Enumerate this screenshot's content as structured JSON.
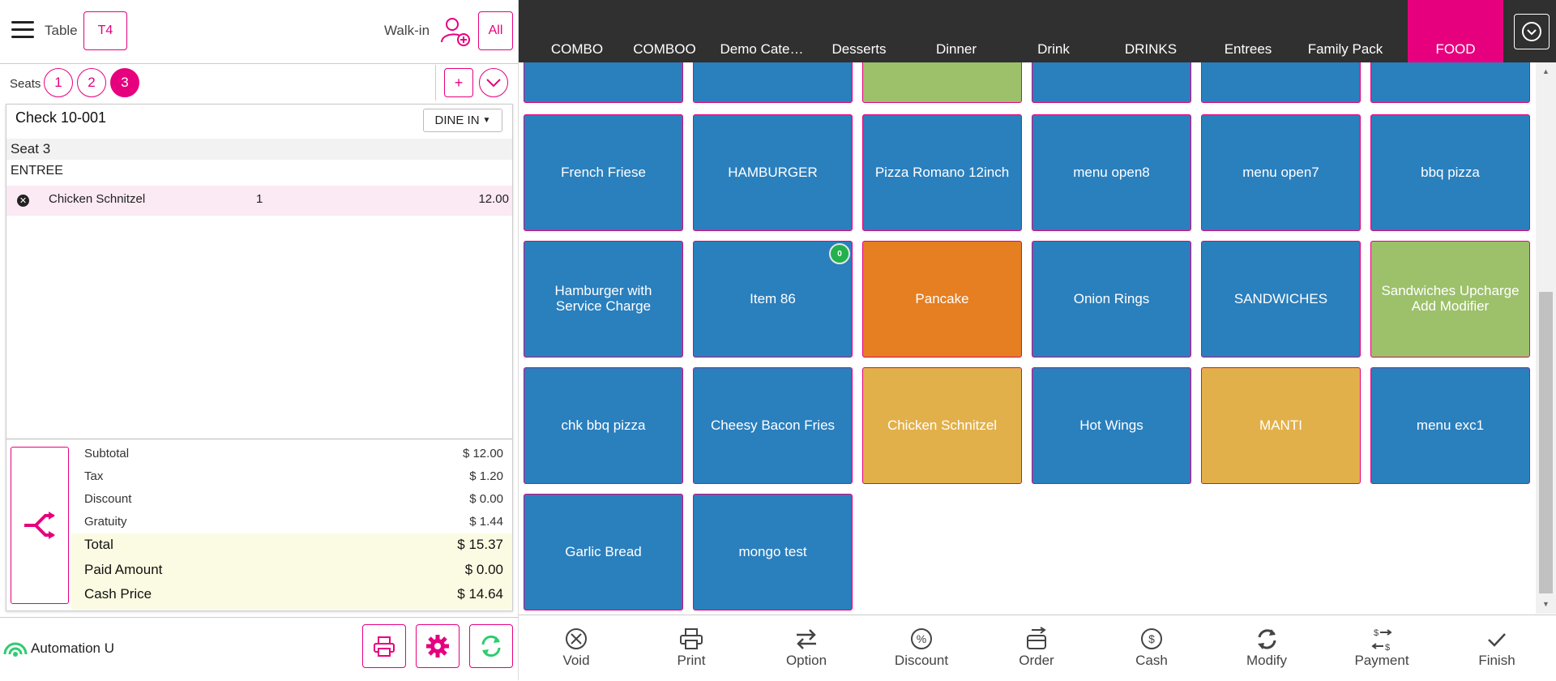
{
  "header": {
    "table_label": "Table",
    "table_value": "T4",
    "walkin_label": "Walk-in",
    "all_label": "All"
  },
  "seats": {
    "label": "Seats",
    "items": [
      "1",
      "2",
      "3"
    ],
    "active": "3",
    "add_label": "+"
  },
  "check": {
    "title": "Check 10-001",
    "order_type": "DINE IN",
    "seat_header": "Seat 3",
    "category": "ENTREE",
    "items": [
      {
        "name": "Chicken Schnitzel",
        "qty": "1",
        "price": "12.00"
      }
    ]
  },
  "summary": {
    "subtotal_label": "Subtotal",
    "subtotal_value": "$ 12.00",
    "tax_label": "Tax",
    "tax_value": "$ 1.20",
    "discount_label": "Discount",
    "discount_value": "$ 0.00",
    "gratuity_label": "Gratuity",
    "gratuity_value": "$ 1.44",
    "total_label": "Total",
    "total_value": "$ 15.37",
    "paid_label": "Paid Amount",
    "paid_value": "$ 0.00",
    "cash_label": "Cash Price",
    "cash_value": "$ 14.64"
  },
  "footer": {
    "user": "Automation U"
  },
  "categories": {
    "items": [
      "COMBO",
      "COMBOO",
      "Demo Cate…",
      "Desserts",
      "Dinner",
      "Drink",
      "DRINKS",
      "Entrees",
      "Family Pack",
      "FOOD"
    ],
    "active": "FOOD"
  },
  "menu": {
    "partial_row_colors": [
      "#2a7fbd",
      "#2a7fbd",
      "#9dc06a",
      "#2a7fbd",
      "#2a7fbd",
      "#2a7fbd"
    ],
    "rows": [
      [
        {
          "label": "French Friese",
          "color": "#2a7fbd"
        },
        {
          "label": "HAMBURGER",
          "color": "#2a7fbd"
        },
        {
          "label": "Pizza Romano 12inch",
          "color": "#2a7fbd"
        },
        {
          "label": "menu open8",
          "color": "#2a7fbd"
        },
        {
          "label": "menu open7",
          "color": "#2a7fbd"
        },
        {
          "label": "bbq pizza",
          "color": "#2a7fbd"
        }
      ],
      [
        {
          "label": "Hamburger with Service Charge",
          "color": "#2a7fbd"
        },
        {
          "label": "Item 86",
          "color": "#2a7fbd",
          "badge": "0"
        },
        {
          "label": "Pancake",
          "color": "#e67e22"
        },
        {
          "label": "Onion Rings",
          "color": "#2a7fbd"
        },
        {
          "label": "SANDWICHES",
          "color": "#2a7fbd"
        },
        {
          "label": "Sandwiches Upcharge Add Modifier",
          "color": "#9dc06a"
        }
      ],
      [
        {
          "label": "chk bbq pizza",
          "color": "#2a7fbd"
        },
        {
          "label": "Cheesy Bacon Fries",
          "color": "#2a7fbd"
        },
        {
          "label": "Chicken Schnitzel",
          "color": "#e2b04a"
        },
        {
          "label": "Hot Wings",
          "color": "#2a7fbd"
        },
        {
          "label": "MANTI",
          "color": "#e2b04a"
        },
        {
          "label": "menu exc1",
          "color": "#2a7fbd"
        }
      ],
      [
        {
          "label": "Garlic Bread",
          "color": "#2a7fbd"
        },
        {
          "label": "mongo test",
          "color": "#2a7fbd"
        }
      ]
    ]
  },
  "actions": {
    "items": [
      {
        "label": "Void",
        "icon": "void-icon"
      },
      {
        "label": "Print",
        "icon": "print-icon"
      },
      {
        "label": "Option",
        "icon": "option-icon"
      },
      {
        "label": "Discount",
        "icon": "discount-icon"
      },
      {
        "label": "Order",
        "icon": "order-icon"
      },
      {
        "label": "Cash",
        "icon": "cash-icon"
      },
      {
        "label": "Modify",
        "icon": "modify-icon"
      },
      {
        "label": "Payment",
        "icon": "payment-icon"
      },
      {
        "label": "Finish",
        "icon": "finish-icon"
      }
    ]
  },
  "colors": {
    "accent": "#e6007e",
    "tab_bar": "#303030",
    "tile_blue": "#2a7fbd",
    "highlight_row": "#fbe9f3",
    "total_bg": "#fbfbe3"
  }
}
